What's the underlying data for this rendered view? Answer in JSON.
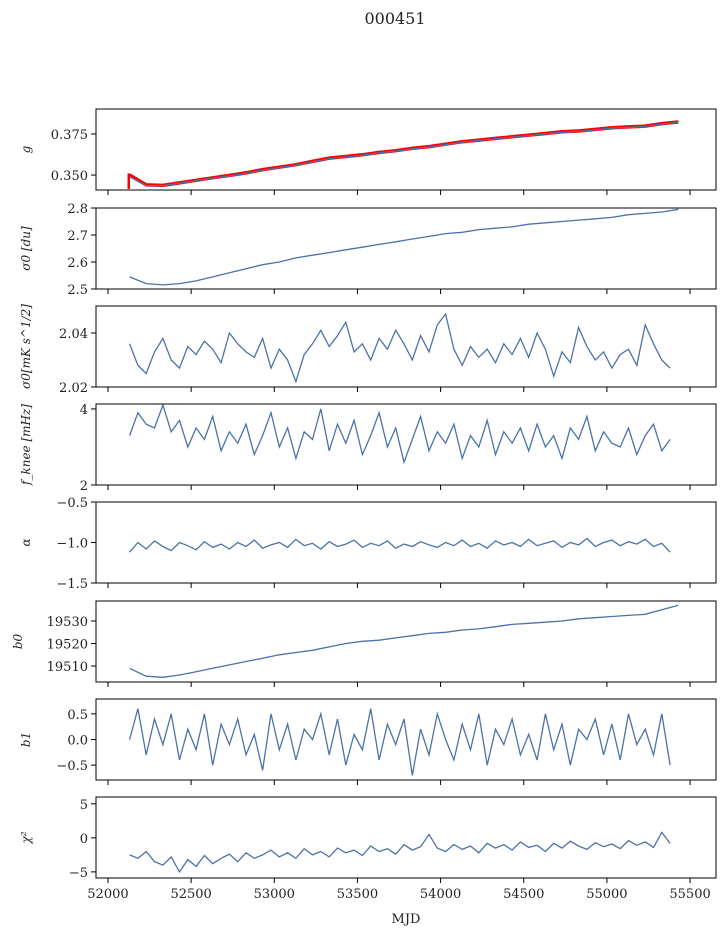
{
  "chart_data": {
    "type": "line",
    "title": "000451",
    "xlabel": "MJD",
    "xlim": [
      51928,
      55656
    ],
    "xticks": [
      52000,
      52500,
      53000,
      53500,
      54000,
      54500,
      55000,
      55500
    ],
    "series_color": "#4c72a8",
    "overlay_color": "#ff0000",
    "panels": [
      {
        "ylabel": "g",
        "ylim": [
          0.3409,
          0.3902
        ],
        "yticks": [
          0.35,
          0.375
        ],
        "ytick_labels": [
          "0.350",
          "0.375"
        ],
        "x_start": 52130,
        "x_step": 100,
        "series": [
          {
            "name": "g",
            "values": [
              0.349,
              0.3435,
              0.3435,
              0.345,
              0.3465,
              0.348,
              0.3495,
              0.351,
              0.353,
              0.3545,
              0.356,
              0.358,
              0.36,
              0.361,
              0.362,
              0.3635,
              0.3645,
              0.366,
              0.367,
              0.3685,
              0.37,
              0.371,
              0.372,
              0.373,
              0.374,
              0.375,
              0.376,
              0.3765,
              0.3775,
              0.3785,
              0.379,
              0.3795,
              0.381,
              0.382
            ]
          },
          {
            "name": "g_overlay",
            "overlay": true,
            "values": [
              0.35,
              0.344,
              0.3437,
              0.3452,
              0.3468,
              0.3483,
              0.3498,
              0.3513,
              0.3533,
              0.3548,
              0.3563,
              0.3583,
              0.3603,
              0.3613,
              0.3623,
              0.3638,
              0.3648,
              0.3663,
              0.3673,
              0.3688,
              0.3703,
              0.3713,
              0.3723,
              0.3733,
              0.3743,
              0.3753,
              0.3763,
              0.3768,
              0.3778,
              0.3788,
              0.3793,
              0.3798,
              0.3813,
              0.3823
            ]
          }
        ]
      },
      {
        "ylabel": "σ0 [du]",
        "ylim": [
          2.5,
          2.8
        ],
        "yticks": [
          2.5,
          2.6,
          2.7,
          2.8
        ],
        "ytick_labels": [
          "2.5",
          "2.6",
          "2.7",
          "2.8"
        ],
        "x_start": 52130,
        "x_step": 100,
        "series": [
          {
            "name": "sigma0_du",
            "values": [
              2.545,
              2.52,
              2.515,
              2.52,
              2.53,
              2.545,
              2.56,
              2.575,
              2.59,
              2.6,
              2.615,
              2.625,
              2.635,
              2.645,
              2.655,
              2.665,
              2.675,
              2.685,
              2.695,
              2.705,
              2.71,
              2.72,
              2.725,
              2.73,
              2.74,
              2.745,
              2.75,
              2.755,
              2.76,
              2.765,
              2.775,
              2.78,
              2.785,
              2.795
            ]
          }
        ]
      },
      {
        "ylabel": "σ0[mK s^1/2]",
        "ylim": [
          2.02,
          2.05
        ],
        "yticks": [
          2.02,
          2.04
        ],
        "ytick_labels": [
          "2.02",
          "2.04"
        ],
        "x_start": 52130,
        "x_step": 50,
        "series": [
          {
            "name": "sigma0_mK",
            "values": [
              2.036,
              2.028,
              2.025,
              2.033,
              2.038,
              2.03,
              2.027,
              2.035,
              2.032,
              2.037,
              2.034,
              2.029,
              2.04,
              2.036,
              2.033,
              2.031,
              2.038,
              2.027,
              2.034,
              2.03,
              2.022,
              2.032,
              2.036,
              2.041,
              2.035,
              2.039,
              2.044,
              2.033,
              2.036,
              2.03,
              2.038,
              2.034,
              2.041,
              2.036,
              2.03,
              2.039,
              2.033,
              2.043,
              2.047,
              2.034,
              2.028,
              2.035,
              2.031,
              2.034,
              2.029,
              2.036,
              2.032,
              2.038,
              2.031,
              2.04,
              2.034,
              2.024,
              2.033,
              2.029,
              2.042,
              2.035,
              2.03,
              2.033,
              2.027,
              2.032,
              2.034,
              2.028,
              2.043,
              2.036,
              2.03,
              2.027
            ]
          }
        ]
      },
      {
        "ylabel": "f_knee [mHz]",
        "ylim": [
          2,
          4.13
        ],
        "yticks": [
          2,
          4
        ],
        "ytick_labels": [
          "2",
          "4"
        ],
        "x_start": 52130,
        "x_step": 50,
        "series": [
          {
            "name": "fknee",
            "values": [
              3.3,
              3.9,
              3.6,
              3.5,
              4.1,
              3.4,
              3.7,
              3.0,
              3.5,
              3.2,
              3.8,
              2.9,
              3.4,
              3.1,
              3.6,
              2.8,
              3.3,
              3.9,
              3.0,
              3.5,
              2.7,
              3.4,
              3.2,
              4.0,
              2.9,
              3.6,
              3.1,
              3.7,
              2.8,
              3.3,
              3.9,
              3.0,
              3.5,
              2.6,
              3.2,
              3.8,
              2.9,
              3.4,
              3.1,
              3.6,
              2.7,
              3.3,
              3.0,
              3.7,
              2.8,
              3.4,
              3.1,
              3.5,
              2.9,
              3.6,
              3.0,
              3.3,
              2.7,
              3.5,
              3.2,
              3.8,
              2.9,
              3.4,
              3.1,
              3.0,
              3.5,
              2.8,
              3.3,
              3.6,
              2.9,
              3.2
            ]
          }
        ]
      },
      {
        "ylabel": "α",
        "ylim": [
          -1.5,
          -0.5
        ],
        "yticks": [
          -1.5,
          -1.0,
          -0.5
        ],
        "ytick_labels": [
          "−1.5",
          "−1.0",
          "−0.5"
        ],
        "x_start": 52130,
        "x_step": 50,
        "series": [
          {
            "name": "alpha",
            "values": [
              -1.12,
              -1.0,
              -1.08,
              -0.98,
              -1.05,
              -1.1,
              -1.0,
              -1.04,
              -1.09,
              -0.99,
              -1.06,
              -1.02,
              -1.08,
              -1.0,
              -1.05,
              -0.97,
              -1.07,
              -1.03,
              -1.0,
              -1.06,
              -0.96,
              -1.04,
              -1.01,
              -1.08,
              -0.99,
              -1.05,
              -1.02,
              -0.97,
              -1.06,
              -1.01,
              -1.04,
              -0.98,
              -1.07,
              -1.02,
              -1.05,
              -0.99,
              -1.03,
              -1.06,
              -1.0,
              -1.04,
              -0.97,
              -1.05,
              -1.01,
              -1.07,
              -0.98,
              -1.03,
              -1.0,
              -1.05,
              -0.96,
              -1.04,
              -1.01,
              -0.98,
              -1.06,
              -1.0,
              -1.03,
              -0.95,
              -1.05,
              -1.0,
              -0.97,
              -1.04,
              -0.99,
              -1.02,
              -0.96,
              -1.05,
              -1.01,
              -1.12
            ]
          }
        ]
      },
      {
        "ylabel": "b0",
        "ylim": [
          19502.9,
          19538.9
        ],
        "yticks": [
          19510,
          19520,
          19530
        ],
        "ytick_labels": [
          "19510",
          "19520",
          "19530"
        ],
        "x_start": 52130,
        "x_step": 100,
        "series": [
          {
            "name": "b0",
            "values": [
              19509,
              19505.5,
              19505,
              19506,
              19507.5,
              19509,
              19510.5,
              19512,
              19513.5,
              19515,
              19516,
              19517,
              19518.5,
              19520,
              19521,
              19521.5,
              19522.5,
              19523.5,
              19524.5,
              19525,
              19526,
              19526.5,
              19527.5,
              19528.5,
              19529,
              19529.5,
              19530,
              19531,
              19531.5,
              19532,
              19532.5,
              19533,
              19535,
              19537
            ]
          }
        ]
      },
      {
        "ylabel": "b1",
        "ylim": [
          -0.79,
          0.79
        ],
        "yticks": [
          -0.5,
          0.0,
          0.5
        ],
        "ytick_labels": [
          "−0.5",
          "0.0",
          "0.5"
        ],
        "x_start": 52130,
        "x_step": 50,
        "series": [
          {
            "name": "b1",
            "values": [
              0.0,
              0.6,
              -0.3,
              0.4,
              -0.1,
              0.5,
              -0.4,
              0.2,
              -0.2,
              0.5,
              -0.5,
              0.3,
              -0.1,
              0.4,
              -0.3,
              0.1,
              -0.6,
              0.5,
              -0.2,
              0.3,
              -0.4,
              0.2,
              0.0,
              0.5,
              -0.3,
              0.4,
              -0.5,
              0.1,
              -0.2,
              0.6,
              -0.4,
              0.3,
              -0.1,
              0.4,
              -0.7,
              0.2,
              -0.3,
              0.5,
              0.0,
              -0.4,
              0.3,
              -0.2,
              0.5,
              -0.5,
              0.2,
              -0.1,
              0.4,
              -0.3,
              0.1,
              -0.4,
              0.5,
              -0.2,
              0.3,
              -0.5,
              0.2,
              0.0,
              0.4,
              -0.3,
              0.3,
              -0.4,
              0.5,
              -0.1,
              0.2,
              -0.3,
              0.5,
              -0.5
            ]
          }
        ]
      },
      {
        "ylabel": "χ²",
        "ylim": [
          -5.9,
          6.0
        ],
        "yticks": [
          -5,
          0,
          5
        ],
        "ytick_labels": [
          "−5",
          "0",
          "5"
        ],
        "x_start": 52130,
        "x_step": 50,
        "series": [
          {
            "name": "chi2",
            "values": [
              -2.5,
              -3,
              -2,
              -3.5,
              -4,
              -2.8,
              -5,
              -3.2,
              -4.2,
              -2.6,
              -3.8,
              -3,
              -2.4,
              -3.5,
              -2.2,
              -3,
              -2.5,
              -1.8,
              -2.8,
              -2.2,
              -3,
              -1.6,
              -2.5,
              -2,
              -2.8,
              -1.5,
              -2.2,
              -1.8,
              -2.6,
              -1.2,
              -2,
              -1.6,
              -2.4,
              -1,
              -1.8,
              -1.3,
              0.5,
              -1.5,
              -2,
              -1,
              -1.7,
              -1.2,
              -2.2,
              -0.8,
              -1.5,
              -1,
              -1.8,
              -0.6,
              -1.4,
              -1.1,
              -2,
              -0.8,
              -1.5,
              -0.5,
              -1.2,
              -1.7,
              -0.7,
              -1.3,
              -0.9,
              -1.6,
              -0.4,
              -1.1,
              -0.6,
              -1.4,
              0.8,
              -0.8
            ]
          }
        ]
      }
    ]
  }
}
